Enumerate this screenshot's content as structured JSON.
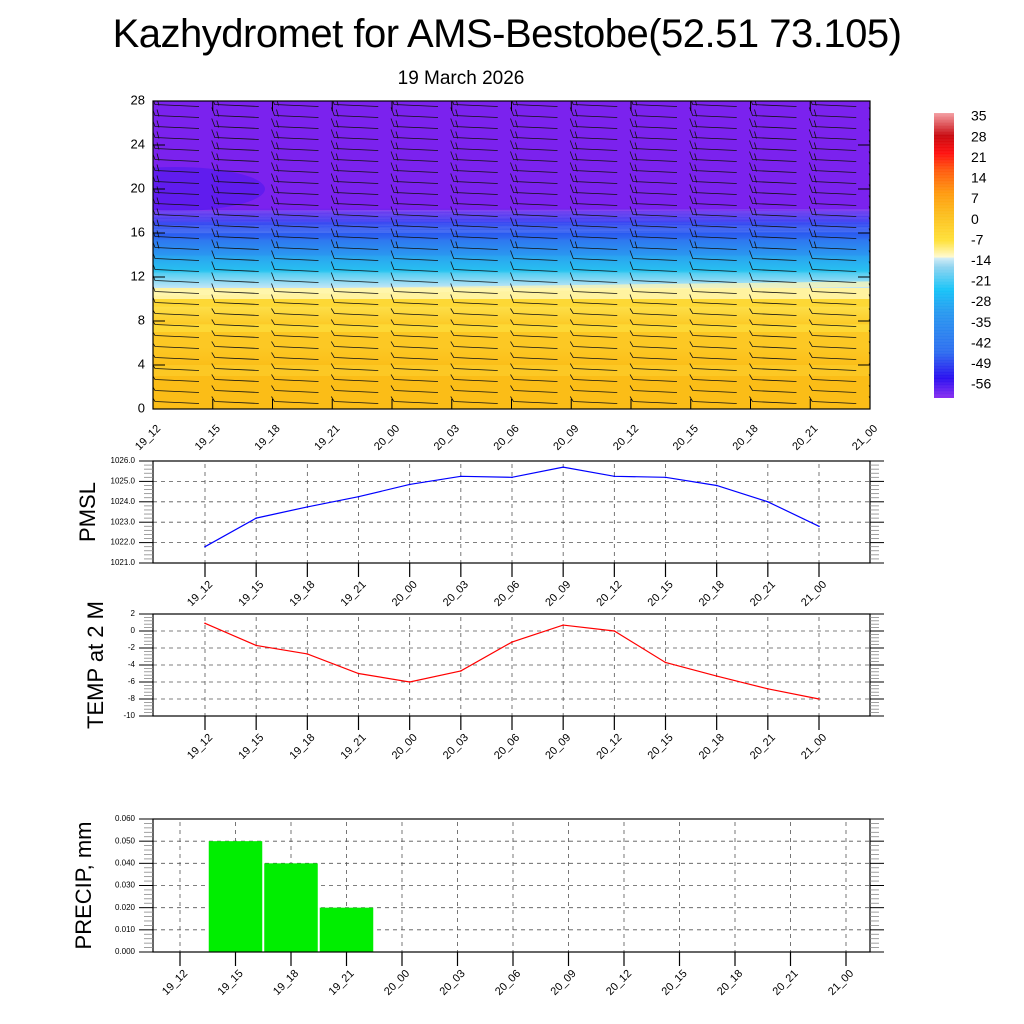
{
  "header": {
    "title": "Kazhydromet for AMS-Bestobe(52.51 73.105)",
    "subtitle": "19 March 2026"
  },
  "time_labels": [
    "19_12",
    "19_15",
    "19_18",
    "19_21",
    "20_00",
    "20_03",
    "20_06",
    "20_09",
    "20_12",
    "20_15",
    "20_18",
    "20_21",
    "21_00"
  ],
  "chart_data": [
    {
      "type": "heatmap",
      "name": "temperature-cross-section",
      "title": "",
      "x": [
        "19_12",
        "19_15",
        "19_18",
        "19_21",
        "20_00",
        "20_03",
        "20_06",
        "20_09",
        "20_12",
        "20_15",
        "20_18",
        "20_21",
        "21_00"
      ],
      "ylim": [
        0,
        28
      ],
      "yticks": [
        "0",
        "4",
        "8",
        "12",
        "16",
        "20",
        "24",
        "28"
      ],
      "colorbar": {
        "labels": [
          "35",
          "28",
          "21",
          "14",
          "7",
          "0",
          "-7",
          "-14",
          "-21",
          "-28",
          "-35",
          "-42",
          "-49",
          "-56"
        ],
        "range": [
          -60,
          38
        ]
      },
      "layers": [
        {
          "from": 0,
          "to": 3,
          "value": 2,
          "color": "#fbbd17"
        },
        {
          "from": 3,
          "to": 7,
          "value": 0,
          "color": "#fcc824"
        },
        {
          "from": 7,
          "to": 10,
          "value": -4,
          "color": "#fdd835"
        },
        {
          "from": 10,
          "to": 11,
          "value": -9,
          "color": "#fff3a0"
        },
        {
          "from": 11,
          "to": 12.5,
          "value": -16,
          "color": "#c4e6f6"
        },
        {
          "from": 12.5,
          "to": 14,
          "value": -25,
          "color": "#28c4f0"
        },
        {
          "from": 14,
          "to": 15.5,
          "value": -35,
          "color": "#2a9af0"
        },
        {
          "from": 15.5,
          "to": 17,
          "value": -45,
          "color": "#2f6ef0"
        },
        {
          "from": 17,
          "to": 18,
          "value": -55,
          "color": "#1a2cf0"
        },
        {
          "from": 18,
          "to": 28,
          "value": -60,
          "color": "#7b22ee"
        }
      ],
      "wind_barbs": "present"
    },
    {
      "type": "line",
      "name": "pmsl",
      "ylabel": "PMSL",
      "ylim": [
        1021.0,
        1026.0
      ],
      "yticks": [
        "1021.0",
        "1022.0",
        "1023.0",
        "1024.0",
        "1025.0",
        "1026.0"
      ],
      "x": [
        "19_12",
        "19_15",
        "19_18",
        "19_21",
        "20_00",
        "20_03",
        "20_06",
        "20_09",
        "20_12",
        "20_15",
        "20_18",
        "20_21",
        "21_00"
      ],
      "values": [
        1021.8,
        1023.2,
        1023.75,
        1024.25,
        1024.85,
        1025.25,
        1025.2,
        1025.7,
        1025.25,
        1025.2,
        1024.8,
        1024.0,
        1022.8
      ],
      "color": "#0000ff",
      "grid": true
    },
    {
      "type": "line",
      "name": "temp-2m",
      "ylabel": "TEMP at 2 M",
      "ylim": [
        -10,
        2
      ],
      "yticks": [
        "-10",
        "-8",
        "-6",
        "-4",
        "-2",
        "0",
        "2"
      ],
      "x": [
        "19_12",
        "19_15",
        "19_18",
        "19_21",
        "20_00",
        "20_03",
        "20_06",
        "20_09",
        "20_12",
        "20_15",
        "20_18",
        "20_21",
        "21_00"
      ],
      "values": [
        0.9,
        -1.7,
        -2.7,
        -5.0,
        -6.0,
        -4.7,
        -1.3,
        0.7,
        0.0,
        -3.7,
        -5.3,
        -6.8,
        -8.0
      ],
      "color": "#ff0000",
      "grid": true
    },
    {
      "type": "bar",
      "name": "precip",
      "ylabel": "PRECIP, mm",
      "ylim": [
        0.0,
        0.06
      ],
      "yticks": [
        "0.000",
        "0.010",
        "0.020",
        "0.030",
        "0.040",
        "0.050",
        "0.060"
      ],
      "categories": [
        "19_12",
        "19_15",
        "19_18",
        "19_21",
        "20_00",
        "20_03",
        "20_06",
        "20_09",
        "20_12",
        "20_15",
        "20_18",
        "20_21",
        "21_00"
      ],
      "values": [
        0,
        0.05,
        0.04,
        0.02,
        0,
        0,
        0,
        0,
        0,
        0,
        0,
        0,
        0
      ],
      "color": "#00ee00",
      "grid": true
    }
  ]
}
